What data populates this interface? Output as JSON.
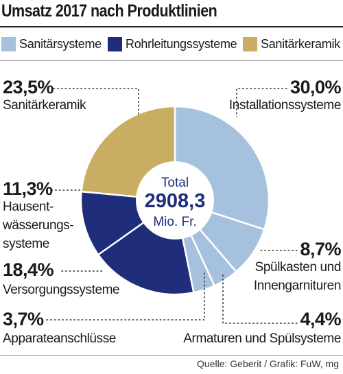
{
  "chart_data": {
    "type": "pie",
    "title": "Umsatz 2017 nach Produktlinien",
    "legend": [
      {
        "name": "Sanitärsysteme",
        "color": "#a6c1de"
      },
      {
        "name": "Rohrleitungssysteme",
        "color": "#1f2d7a"
      },
      {
        "name": "Sanitärkeramik",
        "color": "#c9ad62"
      }
    ],
    "center": {
      "label": "Total",
      "value": "2908,3",
      "unit": "Mio. Fr."
    },
    "slices": [
      {
        "label": "Installationssysteme",
        "pct_text": "30,0%",
        "value": 30.0,
        "group": "Sanitärsysteme",
        "color": "#a6c1de"
      },
      {
        "label": "Spülkasten und Innengarnituren",
        "pct_text": "8,7%",
        "value": 8.7,
        "group": "Sanitärsysteme",
        "color": "#a6c1de"
      },
      {
        "label": "Armaturen und Spülsysteme",
        "pct_text": "4,4%",
        "value": 4.4,
        "group": "Sanitärsysteme",
        "color": "#a6c1de"
      },
      {
        "label": "Apparateanschlüsse",
        "pct_text": "3,7%",
        "value": 3.7,
        "group": "Sanitärsysteme",
        "color": "#a6c1de"
      },
      {
        "label": "Versorgungssysteme",
        "pct_text": "18,4%",
        "value": 18.4,
        "group": "Rohrleitungssysteme",
        "color": "#1f2d7a"
      },
      {
        "label": "Hausentwässerungssysteme",
        "pct_text": "11,3%",
        "value": 11.3,
        "group": "Rohrleitungssysteme",
        "color": "#1f2d7a"
      },
      {
        "label": "Sanitärkeramik",
        "pct_text": "23,5%",
        "value": 23.5,
        "group": "Sanitärkeramik",
        "color": "#c9ad62"
      }
    ],
    "labels_display": {
      "installationssysteme": "Installationssysteme",
      "spuelkasten_1": "Spülkasten und",
      "spuelkasten_2": "Innengarnituren",
      "armaturen": "Armaturen und Spülsysteme",
      "apparate": "Apparateanschlüsse",
      "versorgung": "Versorgungssysteme",
      "haus_1": "Hausent-",
      "haus_2": "wässerungs-",
      "haus_3": "systeme",
      "keramik": "Sanitärkeramik"
    }
  },
  "source": "Quelle: Geberit / Grafik: FuW, mg"
}
